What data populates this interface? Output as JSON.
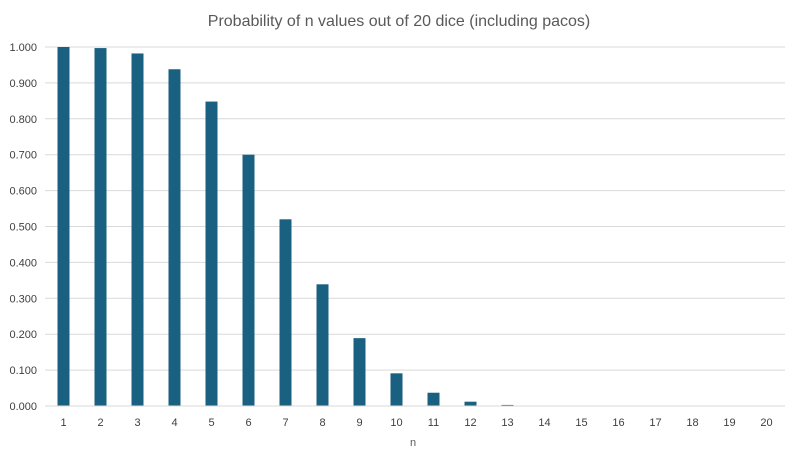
{
  "chart_data": {
    "type": "bar",
    "title": "Probability of n values out of 20 dice (including pacos)",
    "xlabel": "n",
    "ylabel": "",
    "categories": [
      "1",
      "2",
      "3",
      "4",
      "5",
      "6",
      "7",
      "8",
      "9",
      "10",
      "11",
      "12",
      "13",
      "14",
      "15",
      "16",
      "17",
      "18",
      "19",
      "20"
    ],
    "values": [
      1.0,
      0.997,
      0.982,
      0.938,
      0.848,
      0.7,
      0.52,
      0.339,
      0.189,
      0.091,
      0.037,
      0.012,
      0.003,
      0.001,
      0.0,
      0.0,
      0.0,
      0.0,
      0.0,
      0.0
    ],
    "ylim": [
      0,
      1.0
    ],
    "yticks": [
      "0.000",
      "0.100",
      "0.200",
      "0.300",
      "0.400",
      "0.500",
      "0.600",
      "0.700",
      "0.800",
      "0.900",
      "1.000"
    ],
    "grid": true,
    "legend": "none",
    "bar_color": "#1a6080",
    "grid_color": "#d9d9d9"
  }
}
